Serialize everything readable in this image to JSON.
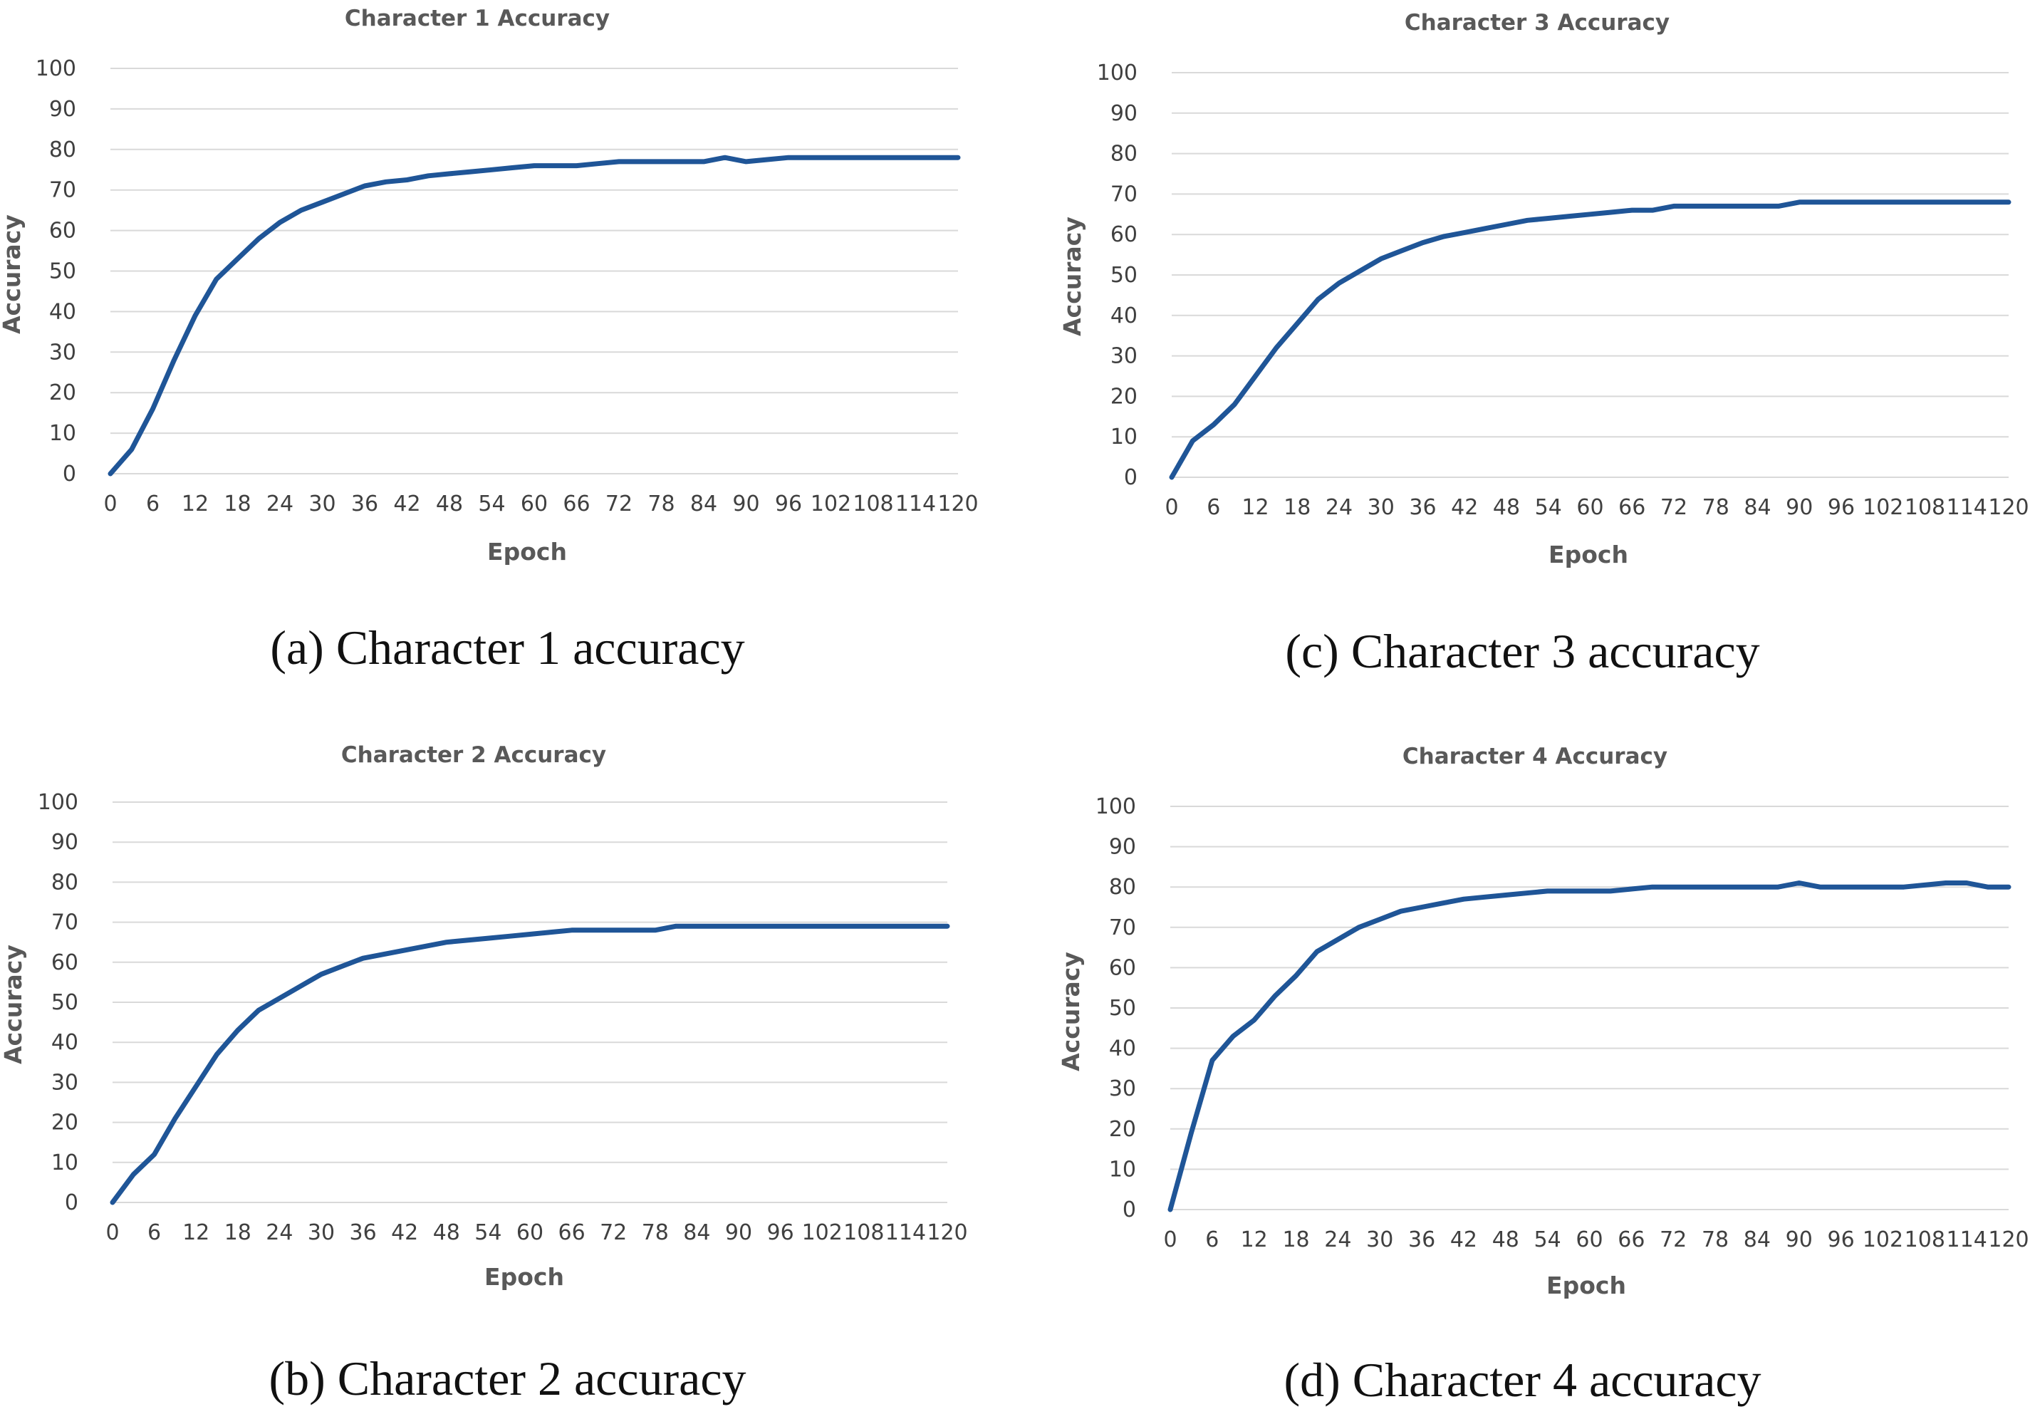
{
  "figure": {
    "captions": {
      "a": "(a) Character 1 accuracy",
      "b": "(b) Character 2 accuracy",
      "c": "(c) Character 3 accuracy",
      "d": "(d) Character 4 accuracy"
    }
  },
  "colors": {
    "series": "#1f5597",
    "grid": "#d9d9d9"
  },
  "chart_data": [
    {
      "id": "a",
      "type": "line",
      "title": "Character 1 Accuracy",
      "xlabel": "Epoch",
      "ylabel": "Accuracy",
      "ylim": [
        0,
        100
      ],
      "xlim": [
        0,
        120
      ],
      "yticks": [
        "0",
        "10",
        "20",
        "30",
        "40",
        "50",
        "60",
        "70",
        "80",
        "90",
        "100"
      ],
      "xticks": [
        "0",
        "6",
        "12",
        "18",
        "24",
        "30",
        "36",
        "42",
        "48",
        "54",
        "60",
        "66",
        "72",
        "78",
        "84",
        "90",
        "96",
        "102",
        "108",
        "114",
        "120"
      ],
      "grid": true,
      "series": [
        {
          "name": "Accuracy",
          "x": [
            0,
            3,
            6,
            9,
            12,
            15,
            18,
            21,
            24,
            27,
            30,
            33,
            36,
            39,
            42,
            45,
            48,
            51,
            54,
            57,
            60,
            63,
            66,
            69,
            72,
            75,
            78,
            81,
            84,
            87,
            90,
            93,
            96,
            99,
            102,
            105,
            108,
            111,
            114,
            117,
            120
          ],
          "y": [
            0,
            6,
            16,
            28,
            39,
            48,
            53,
            58,
            62,
            65,
            67,
            69,
            71,
            72,
            72.5,
            73.5,
            74,
            74.5,
            75,
            75.5,
            76,
            76,
            76,
            76.5,
            77,
            77,
            77,
            77,
            77,
            78,
            77,
            77.5,
            78,
            78,
            78,
            78,
            78,
            78,
            78,
            78,
            78
          ]
        }
      ]
    },
    {
      "id": "b",
      "type": "line",
      "title": "Character 2 Accuracy",
      "xlabel": "Epoch",
      "ylabel": "Accuracy",
      "ylim": [
        0,
        100
      ],
      "xlim": [
        0,
        120
      ],
      "yticks": [
        "0",
        "10",
        "20",
        "30",
        "40",
        "50",
        "60",
        "70",
        "80",
        "90",
        "100"
      ],
      "xticks": [
        "0",
        "6",
        "12",
        "18",
        "24",
        "30",
        "36",
        "42",
        "48",
        "54",
        "60",
        "66",
        "72",
        "78",
        "84",
        "90",
        "96",
        "102",
        "108",
        "114",
        "120"
      ],
      "grid": true,
      "series": [
        {
          "name": "Accuracy",
          "x": [
            0,
            3,
            6,
            9,
            12,
            15,
            18,
            21,
            24,
            27,
            30,
            33,
            36,
            39,
            42,
            45,
            48,
            51,
            54,
            57,
            60,
            63,
            66,
            69,
            72,
            75,
            78,
            81,
            84,
            87,
            90,
            93,
            96,
            99,
            102,
            105,
            108,
            111,
            114,
            117,
            120
          ],
          "y": [
            0,
            7,
            12,
            21,
            29,
            37,
            43,
            48,
            51,
            54,
            57,
            59,
            61,
            62,
            63,
            64,
            65,
            65.5,
            66,
            66.5,
            67,
            67.5,
            68,
            68,
            68,
            68,
            68,
            69,
            69,
            69,
            69,
            69,
            69,
            69,
            69,
            69,
            69,
            69,
            69,
            69,
            69
          ]
        }
      ]
    },
    {
      "id": "c",
      "type": "line",
      "title": "Character 3 Accuracy",
      "xlabel": "Epoch",
      "ylabel": "Accuracy",
      "ylim": [
        0,
        100
      ],
      "xlim": [
        0,
        120
      ],
      "yticks": [
        "0",
        "10",
        "20",
        "30",
        "40",
        "50",
        "60",
        "70",
        "80",
        "90",
        "100"
      ],
      "xticks": [
        "0",
        "6",
        "12",
        "18",
        "24",
        "30",
        "36",
        "42",
        "48",
        "54",
        "60",
        "66",
        "72",
        "78",
        "84",
        "90",
        "96",
        "102",
        "108",
        "114",
        "120"
      ],
      "grid": true,
      "series": [
        {
          "name": "Accuracy",
          "x": [
            0,
            3,
            6,
            9,
            12,
            15,
            18,
            21,
            24,
            27,
            30,
            33,
            36,
            39,
            42,
            45,
            48,
            51,
            54,
            57,
            60,
            63,
            66,
            69,
            72,
            75,
            78,
            81,
            84,
            87,
            90,
            93,
            96,
            99,
            102,
            105,
            108,
            111,
            114,
            117,
            120
          ],
          "y": [
            0,
            9,
            13,
            18,
            25,
            32,
            38,
            44,
            48,
            51,
            54,
            56,
            58,
            59.5,
            60.5,
            61.5,
            62.5,
            63.5,
            64,
            64.5,
            65,
            65.5,
            66,
            66,
            67,
            67,
            67,
            67,
            67,
            67,
            68,
            68,
            68,
            68,
            68,
            68,
            68,
            68,
            68,
            68,
            68
          ]
        }
      ]
    },
    {
      "id": "d",
      "type": "line",
      "title": "Character 4 Accuracy",
      "xlabel": "Epoch",
      "ylabel": "Accuracy",
      "ylim": [
        0,
        100
      ],
      "xlim": [
        0,
        120
      ],
      "yticks": [
        "0",
        "10",
        "20",
        "30",
        "40",
        "50",
        "60",
        "70",
        "80",
        "90",
        "100"
      ],
      "xticks": [
        "0",
        "6",
        "12",
        "18",
        "24",
        "30",
        "36",
        "42",
        "48",
        "54",
        "60",
        "66",
        "72",
        "78",
        "84",
        "90",
        "96",
        "102",
        "108",
        "114",
        "120"
      ],
      "grid": true,
      "series": [
        {
          "name": "Accuracy",
          "x": [
            0,
            3,
            6,
            9,
            12,
            15,
            18,
            21,
            24,
            27,
            30,
            33,
            36,
            39,
            42,
            45,
            48,
            51,
            54,
            57,
            60,
            63,
            66,
            69,
            72,
            75,
            78,
            81,
            84,
            87,
            90,
            93,
            96,
            99,
            102,
            105,
            108,
            111,
            114,
            117,
            120
          ],
          "y": [
            0,
            19,
            37,
            43,
            47,
            53,
            58,
            64,
            67,
            70,
            72,
            74,
            75,
            76,
            77,
            77.5,
            78,
            78.5,
            79,
            79,
            79,
            79,
            79.5,
            80,
            80,
            80,
            80,
            80,
            80,
            80,
            81,
            80,
            80,
            80,
            80,
            80,
            80.5,
            81,
            81,
            80,
            80
          ]
        }
      ]
    }
  ]
}
